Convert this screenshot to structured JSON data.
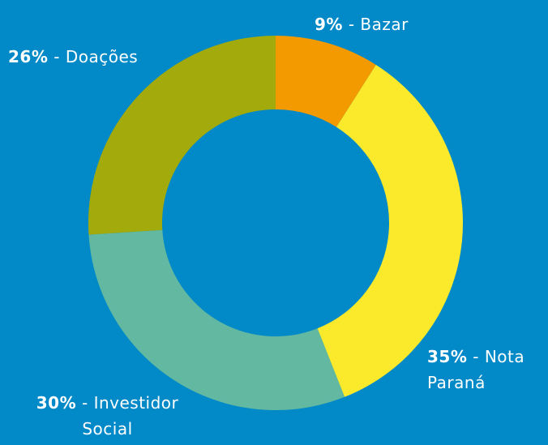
{
  "chart_data": {
    "type": "donut",
    "categories": [
      "Bazar",
      "Nota Paraná",
      "Investidor Social",
      "Doações"
    ],
    "values": [
      9,
      35,
      30,
      26
    ],
    "value_labels": [
      "9%",
      "35%",
      "30%",
      "26%"
    ],
    "separator": " - ",
    "colors": [
      "#f29a00",
      "#fbea2b",
      "#62b8a0",
      "#a2aa0c"
    ]
  }
}
